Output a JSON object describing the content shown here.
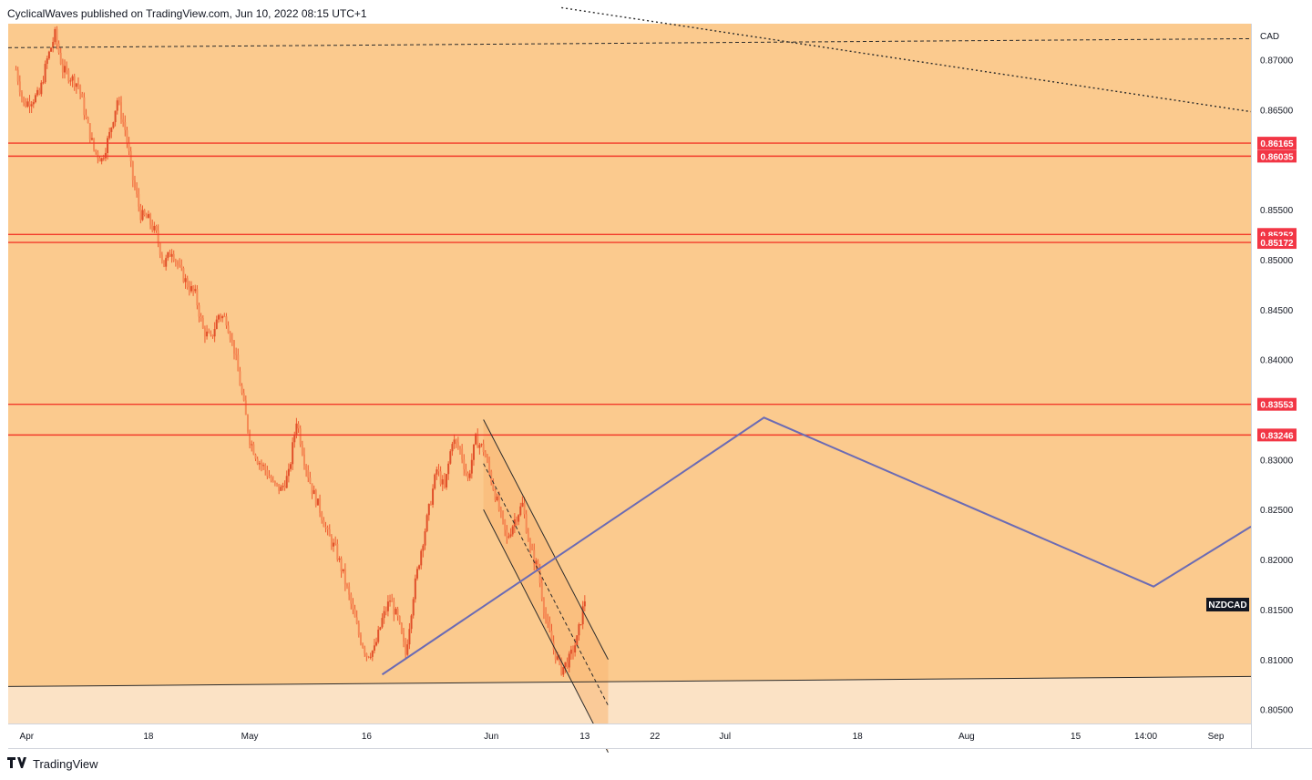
{
  "header": {
    "published": "CyclicalWaves published on TradingView.com, Jun 10, 2022 08:15 UTC+1"
  },
  "footer": {
    "logo_icon": "tradingview-logo-icon",
    "brand": "TradingView"
  },
  "chart_data": {
    "type": "candlestick",
    "symbol": "NZDCAD",
    "currency": "CAD",
    "colors": {
      "background": "#fbca8e",
      "lower_zone": "#fbe2c5",
      "candle": "#ef5a2f",
      "level_line": "#f23a2a",
      "level_label_bg": "#f23645",
      "projection": "#6b6bb4",
      "trendline": "#2b2b2b",
      "symbol_label_bg": "#131722"
    },
    "y_axis": {
      "ticks": [
        0.87,
        0.865,
        0.855,
        0.85,
        0.845,
        0.84,
        0.83,
        0.825,
        0.82,
        0.815,
        0.81,
        0.805
      ],
      "range": [
        0.8036,
        0.8736
      ]
    },
    "x_axis": {
      "ticks": [
        {
          "label": "Apr",
          "day": 0
        },
        {
          "label": "18",
          "day": 17
        },
        {
          "label": "May",
          "day": 30
        },
        {
          "label": "16",
          "day": 45
        },
        {
          "label": "Jun",
          "day": 61
        },
        {
          "label": "13",
          "day": 73
        },
        {
          "label": "22",
          "day": 82
        },
        {
          "label": "Jul",
          "day": 91
        },
        {
          "label": "18",
          "day": 108
        },
        {
          "label": "Aug",
          "day": 122
        },
        {
          "label": "15",
          "day": 136
        },
        {
          "label": "14:00",
          "day": 145
        },
        {
          "label": "Sep",
          "day": 154
        }
      ],
      "range": [
        -1,
        158.5
      ]
    },
    "levels": [
      0.86165,
      0.86035,
      0.85252,
      0.85172,
      0.83553,
      0.83246
    ],
    "level_labels": [
      "0.86165",
      "0.86035",
      "0.85252",
      "0.85172",
      "0.83553",
      "0.83246"
    ],
    "price_path": [
      [
        0,
        0.869
      ],
      [
        1,
        0.8655
      ],
      [
        3,
        0.8665
      ],
      [
        4,
        0.87
      ],
      [
        5,
        0.8725
      ],
      [
        6,
        0.869
      ],
      [
        8,
        0.8675
      ],
      [
        9,
        0.864
      ],
      [
        10,
        0.861
      ],
      [
        11,
        0.86
      ],
      [
        12,
        0.8625
      ],
      [
        13,
        0.866
      ],
      [
        14,
        0.863
      ],
      [
        15,
        0.858
      ],
      [
        16,
        0.8545
      ],
      [
        17,
        0.854
      ],
      [
        18,
        0.8525
      ],
      [
        19,
        0.8495
      ],
      [
        20,
        0.851
      ],
      [
        21,
        0.849
      ],
      [
        22,
        0.8475
      ],
      [
        23,
        0.8465
      ],
      [
        24,
        0.843
      ],
      [
        25,
        0.842
      ],
      [
        26,
        0.8445
      ],
      [
        27,
        0.844
      ],
      [
        28,
        0.841
      ],
      [
        29,
        0.8365
      ],
      [
        30,
        0.832
      ],
      [
        31,
        0.83
      ],
      [
        32,
        0.829
      ],
      [
        33,
        0.8275
      ],
      [
        34,
        0.827
      ],
      [
        35,
        0.8285
      ],
      [
        36,
        0.834
      ],
      [
        37,
        0.83
      ],
      [
        38,
        0.827
      ],
      [
        39,
        0.825
      ],
      [
        40,
        0.8225
      ],
      [
        41,
        0.821
      ],
      [
        42,
        0.8185
      ],
      [
        43,
        0.8155
      ],
      [
        44,
        0.8125
      ],
      [
        45,
        0.8105
      ],
      [
        46,
        0.811
      ],
      [
        47,
        0.814
      ],
      [
        48,
        0.816
      ],
      [
        49,
        0.814
      ],
      [
        50,
        0.8105
      ],
      [
        51,
        0.8165
      ],
      [
        52,
        0.821
      ],
      [
        53,
        0.825
      ],
      [
        54,
        0.829
      ],
      [
        55,
        0.827
      ],
      [
        56,
        0.832
      ],
      [
        57,
        0.831
      ],
      [
        58,
        0.828
      ],
      [
        59,
        0.832
      ],
      [
        60,
        0.831
      ],
      [
        61,
        0.828
      ],
      [
        62,
        0.825
      ],
      [
        63,
        0.822
      ],
      [
        64,
        0.824
      ],
      [
        65,
        0.8255
      ],
      [
        66,
        0.821
      ],
      [
        67,
        0.819
      ],
      [
        68,
        0.814
      ],
      [
        69,
        0.811
      ],
      [
        70,
        0.809
      ],
      [
        71,
        0.81
      ],
      [
        72,
        0.812
      ],
      [
        73,
        0.816
      ]
    ],
    "channel": {
      "upper": [
        [
          60,
          0.834
        ],
        [
          76,
          0.81
        ]
      ],
      "middle": [
        [
          60,
          0.8296
        ],
        [
          76,
          0.8054
        ]
      ],
      "lower": [
        [
          60,
          0.825
        ],
        [
          76,
          0.8007
        ]
      ],
      "zone_low": [
        76,
        0.8007
      ]
    },
    "trendlines": {
      "bottom_support": [
        [
          -1,
          0.8073
        ],
        [
          158.5,
          0.8083
        ]
      ],
      "top_dashed": [
        [
          -1,
          0.8712
        ],
        [
          158.5,
          0.8721
        ]
      ],
      "top_dotted": [
        [
          70,
          0.8752
        ],
        [
          158.5,
          0.8648
        ]
      ]
    },
    "projection": [
      [
        47,
        0.8085
      ],
      [
        96,
        0.8342
      ],
      [
        146,
        0.8173
      ],
      [
        158.5,
        0.8233
      ]
    ],
    "markers": {
      "last_price_label": "NZDCAD"
    }
  }
}
